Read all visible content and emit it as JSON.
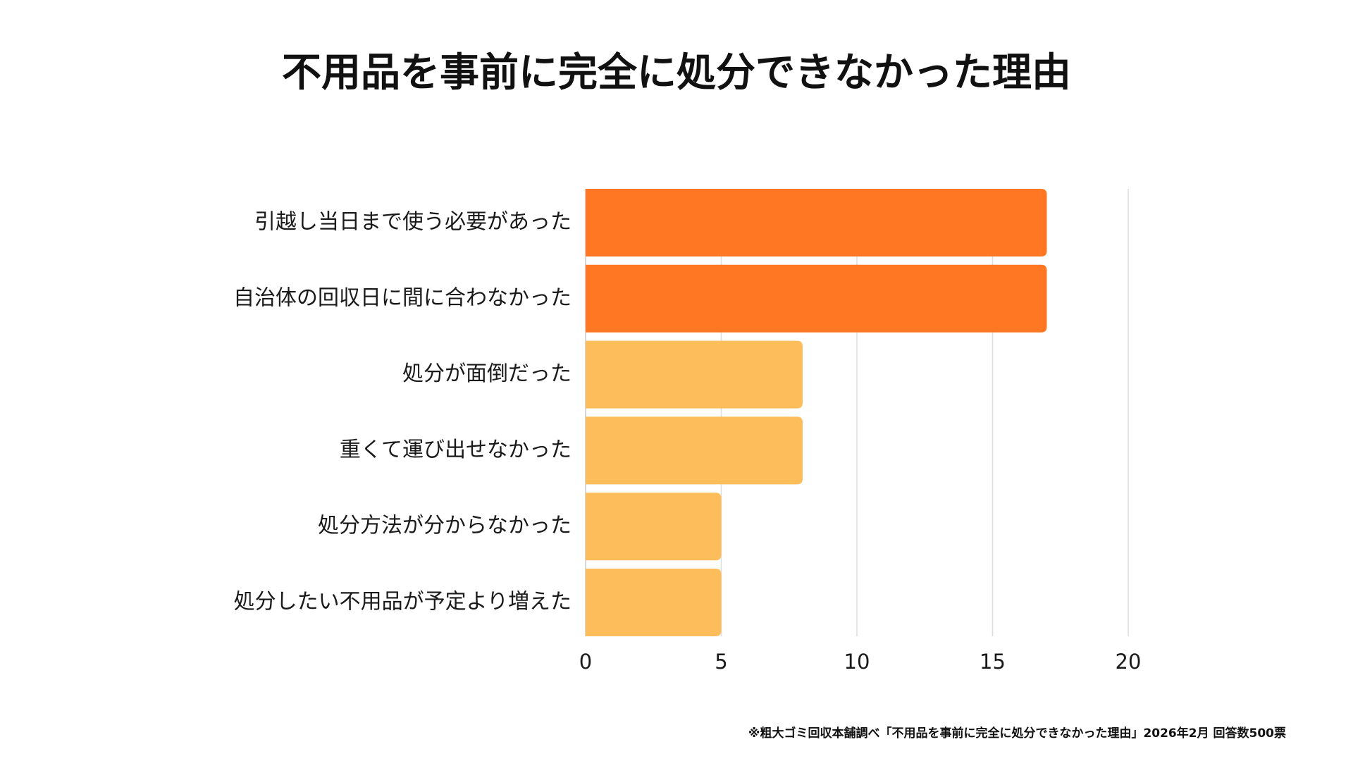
{
  "chart_data": {
    "type": "bar",
    "orientation": "horizontal",
    "title": "不用品を事前に完全に処分できなかった理由",
    "categories": [
      "引越し当日まで使う必要があった",
      "自治体の回収日に間に合わなかった",
      "処分が面倒だった",
      "重くて運び出せなかった",
      "処分方法が分からなかった",
      "処分したい不用品が予定より増えた"
    ],
    "values": [
      17,
      17,
      8,
      8,
      5,
      5
    ],
    "xlim": [
      0,
      20
    ],
    "xticks": [
      0,
      5,
      10,
      15,
      20
    ],
    "xlabel": "",
    "ylabel": "",
    "grid": true,
    "legend": "none",
    "colors": {
      "highlight": "#FF7722",
      "normal": "#FDBD5A",
      "grid": "#DDDDDD",
      "axis": "#CCCCCC"
    },
    "highlight_indices": [
      0,
      1
    ]
  },
  "footnote": "※粗大ゴミ回収本舗調べ「不用品を事前に完全に処分できなかった理由」2026年2月 回答数500票"
}
